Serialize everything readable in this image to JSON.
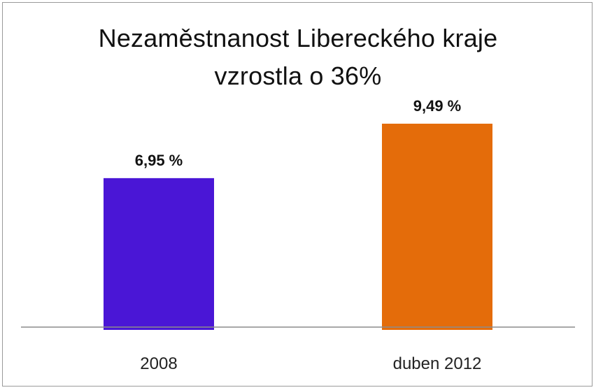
{
  "chart_data": {
    "type": "bar",
    "title_line1": "Nezaměstnanost Libereckého kraje",
    "title_line2": "vzrostla o 36%",
    "categories": [
      "2008",
      "duben 2012"
    ],
    "values": [
      6.95,
      9.49
    ],
    "value_labels": [
      "6,95 %",
      "9,49 %"
    ],
    "colors": [
      "#4a16d6",
      "#e46c0a"
    ],
    "ylim": [
      0,
      10.5
    ],
    "grid": false,
    "legend": "none"
  }
}
